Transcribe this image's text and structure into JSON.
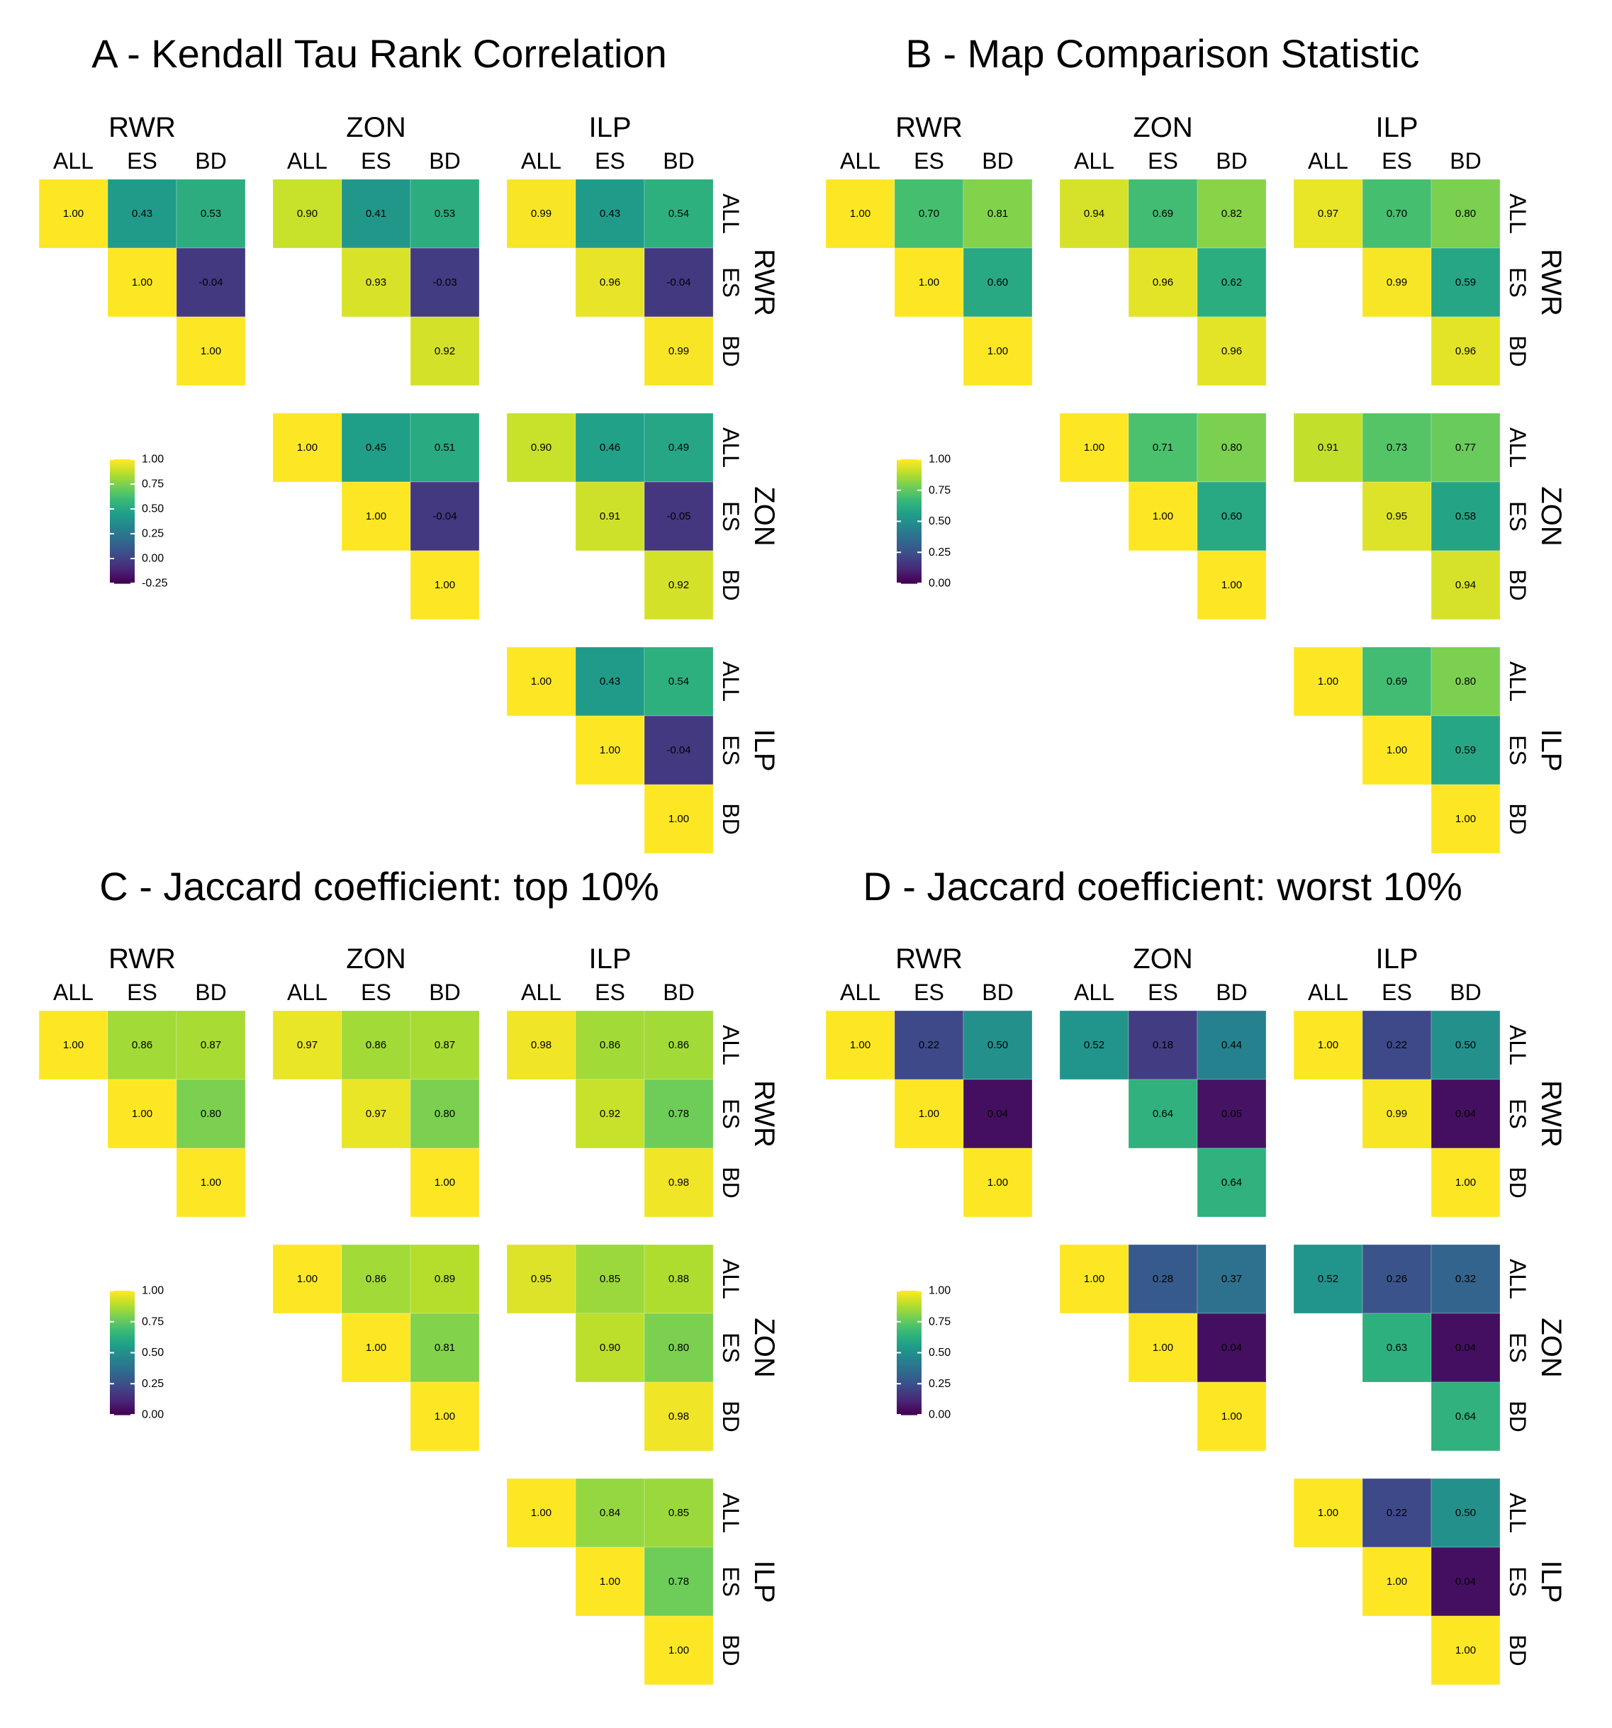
{
  "figure": {
    "group_labels": [
      "RWR",
      "ZON",
      "ILP"
    ],
    "sub_labels": [
      "ALL",
      "ES",
      "BD"
    ]
  },
  "chart_data": [
    {
      "type": "heatmap",
      "title": "A - Kendall Tau Rank Correlation",
      "colorscale": "viridis",
      "legend": {
        "min": -0.25,
        "max": 1.0,
        "ticks": [
          "1.00",
          "0.75",
          "0.50",
          "0.25",
          "0.00",
          "-0.25"
        ],
        "placement": "left"
      },
      "rows": [
        "RWR-ALL",
        "RWR-ES",
        "RWR-BD",
        "ZON-ALL",
        "ZON-ES",
        "ZON-BD",
        "ILP-ALL",
        "ILP-ES",
        "ILP-BD"
      ],
      "columns": [
        "RWR-ALL",
        "RWR-ES",
        "RWR-BD",
        "ZON-ALL",
        "ZON-ES",
        "ZON-BD",
        "ILP-ALL",
        "ILP-ES",
        "ILP-BD"
      ],
      "values": [
        [
          1.0,
          0.43,
          0.53,
          0.9,
          0.41,
          0.53,
          0.99,
          0.43,
          0.54
        ],
        [
          null,
          1.0,
          -0.04,
          null,
          0.93,
          -0.03,
          null,
          0.96,
          -0.04
        ],
        [
          null,
          null,
          1.0,
          null,
          null,
          0.92,
          null,
          null,
          0.99
        ],
        [
          null,
          null,
          null,
          1.0,
          0.45,
          0.51,
          0.9,
          0.46,
          0.49
        ],
        [
          null,
          null,
          null,
          null,
          1.0,
          -0.04,
          null,
          0.91,
          -0.05
        ],
        [
          null,
          null,
          null,
          null,
          null,
          1.0,
          null,
          null,
          0.92
        ],
        [
          null,
          null,
          null,
          null,
          null,
          null,
          1.0,
          0.43,
          0.54
        ],
        [
          null,
          null,
          null,
          null,
          null,
          null,
          null,
          1.0,
          -0.04
        ],
        [
          null,
          null,
          null,
          null,
          null,
          null,
          null,
          null,
          1.0
        ]
      ]
    },
    {
      "type": "heatmap",
      "title": "B - Map Comparison Statistic",
      "colorscale": "viridis",
      "legend": {
        "min": 0.0,
        "max": 1.0,
        "ticks": [
          "1.00",
          "0.75",
          "0.50",
          "0.25",
          "0.00"
        ],
        "placement": "left"
      },
      "rows": [
        "RWR-ALL",
        "RWR-ES",
        "RWR-BD",
        "ZON-ALL",
        "ZON-ES",
        "ZON-BD",
        "ILP-ALL",
        "ILP-ES",
        "ILP-BD"
      ],
      "columns": [
        "RWR-ALL",
        "RWR-ES",
        "RWR-BD",
        "ZON-ALL",
        "ZON-ES",
        "ZON-BD",
        "ILP-ALL",
        "ILP-ES",
        "ILP-BD"
      ],
      "values": [
        [
          1.0,
          0.7,
          0.81,
          0.94,
          0.69,
          0.82,
          0.97,
          0.7,
          0.8
        ],
        [
          null,
          1.0,
          0.6,
          null,
          0.96,
          0.62,
          null,
          0.99,
          0.59
        ],
        [
          null,
          null,
          1.0,
          null,
          null,
          0.96,
          null,
          null,
          0.96
        ],
        [
          null,
          null,
          null,
          1.0,
          0.71,
          0.8,
          0.91,
          0.73,
          0.77
        ],
        [
          null,
          null,
          null,
          null,
          1.0,
          0.6,
          null,
          0.95,
          0.58
        ],
        [
          null,
          null,
          null,
          null,
          null,
          1.0,
          null,
          null,
          0.94
        ],
        [
          null,
          null,
          null,
          null,
          null,
          null,
          1.0,
          0.69,
          0.8
        ],
        [
          null,
          null,
          null,
          null,
          null,
          null,
          null,
          1.0,
          0.59
        ],
        [
          null,
          null,
          null,
          null,
          null,
          null,
          null,
          null,
          1.0
        ]
      ]
    },
    {
      "type": "heatmap",
      "title": "C - Jaccard coefficient: top 10%",
      "colorscale": "viridis",
      "legend": {
        "min": 0.0,
        "max": 1.0,
        "ticks": [
          "1.00",
          "0.75",
          "0.50",
          "0.25",
          "0.00"
        ],
        "placement": "left"
      },
      "rows": [
        "RWR-ALL",
        "RWR-ES",
        "RWR-BD",
        "ZON-ALL",
        "ZON-ES",
        "ZON-BD",
        "ILP-ALL",
        "ILP-ES",
        "ILP-BD"
      ],
      "columns": [
        "RWR-ALL",
        "RWR-ES",
        "RWR-BD",
        "ZON-ALL",
        "ZON-ES",
        "ZON-BD",
        "ILP-ALL",
        "ILP-ES",
        "ILP-BD"
      ],
      "values": [
        [
          1.0,
          0.86,
          0.87,
          0.97,
          0.86,
          0.87,
          0.98,
          0.86,
          0.86
        ],
        [
          null,
          1.0,
          0.8,
          null,
          0.97,
          0.8,
          null,
          0.92,
          0.78
        ],
        [
          null,
          null,
          1.0,
          null,
          null,
          1.0,
          null,
          null,
          0.98
        ],
        [
          null,
          null,
          null,
          1.0,
          0.86,
          0.89,
          0.95,
          0.85,
          0.88
        ],
        [
          null,
          null,
          null,
          null,
          1.0,
          0.81,
          null,
          0.9,
          0.8
        ],
        [
          null,
          null,
          null,
          null,
          null,
          1.0,
          null,
          null,
          0.98
        ],
        [
          null,
          null,
          null,
          null,
          null,
          null,
          1.0,
          0.84,
          0.85
        ],
        [
          null,
          null,
          null,
          null,
          null,
          null,
          null,
          1.0,
          0.78
        ],
        [
          null,
          null,
          null,
          null,
          null,
          null,
          null,
          null,
          1.0
        ]
      ]
    },
    {
      "type": "heatmap",
      "title": "D - Jaccard coefficient: worst 10%",
      "colorscale": "viridis",
      "legend": {
        "min": 0.0,
        "max": 1.0,
        "ticks": [
          "1.00",
          "0.75",
          "0.50",
          "0.25",
          "0.00"
        ],
        "placement": "left"
      },
      "rows": [
        "RWR-ALL",
        "RWR-ES",
        "RWR-BD",
        "ZON-ALL",
        "ZON-ES",
        "ZON-BD",
        "ILP-ALL",
        "ILP-ES",
        "ILP-BD"
      ],
      "columns": [
        "RWR-ALL",
        "RWR-ES",
        "RWR-BD",
        "ZON-ALL",
        "ZON-ES",
        "ZON-BD",
        "ILP-ALL",
        "ILP-ES",
        "ILP-BD"
      ],
      "values": [
        [
          1.0,
          0.22,
          0.5,
          0.52,
          0.18,
          0.44,
          1.0,
          0.22,
          0.5
        ],
        [
          null,
          1.0,
          0.04,
          null,
          0.64,
          0.05,
          null,
          0.99,
          0.04
        ],
        [
          null,
          null,
          1.0,
          null,
          null,
          0.64,
          null,
          null,
          1.0
        ],
        [
          null,
          null,
          null,
          1.0,
          0.28,
          0.37,
          0.52,
          0.26,
          0.32
        ],
        [
          null,
          null,
          null,
          null,
          1.0,
          0.04,
          null,
          0.63,
          0.04
        ],
        [
          null,
          null,
          null,
          null,
          null,
          1.0,
          null,
          null,
          0.64
        ],
        [
          null,
          null,
          null,
          null,
          null,
          null,
          1.0,
          0.22,
          0.5
        ],
        [
          null,
          null,
          null,
          null,
          null,
          null,
          null,
          1.0,
          0.04
        ],
        [
          null,
          null,
          null,
          null,
          null,
          null,
          null,
          null,
          1.0
        ]
      ]
    }
  ]
}
